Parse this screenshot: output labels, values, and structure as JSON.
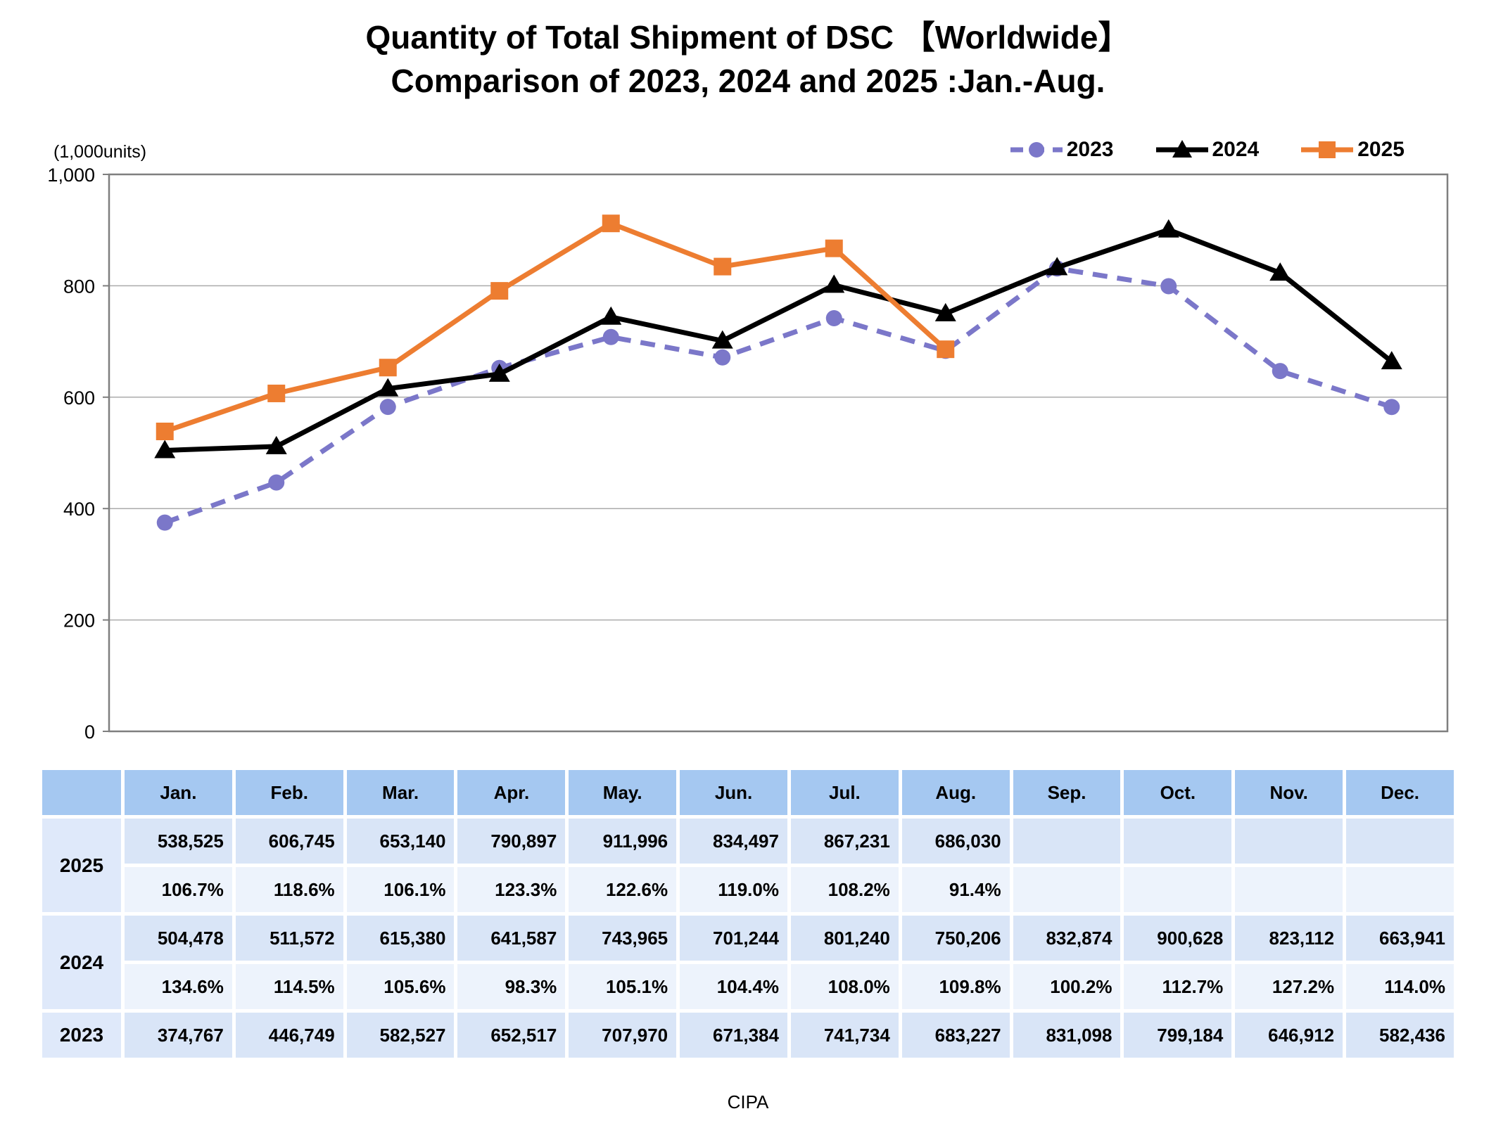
{
  "title": {
    "line1": "Quantity of Total Shipment of DSC 【Worldwide】",
    "line2": "Comparison of 2023, 2024 and 2025 :Jan.-Aug."
  },
  "footer": "CIPA",
  "chart_data": {
    "type": "line",
    "title": "Quantity of Total Shipment of DSC 【Worldwide】 Comparison of 2023, 2024 and 2025 :Jan.-Aug.",
    "xlabel": "",
    "ylabel": "(1,000units)",
    "ylim": [
      0,
      1000
    ],
    "ytick_values": [
      1000,
      800,
      600,
      400,
      200,
      0
    ],
    "ytick_labels": [
      "1,000",
      "800",
      "600",
      "400",
      "200",
      "0"
    ],
    "grid": true,
    "legend_position": "top-right",
    "categories": [
      "Jan.",
      "Feb.",
      "Mar.",
      "Apr.",
      "May.",
      "Jun.",
      "Jul.",
      "Aug.",
      "Sep.",
      "Oct.",
      "Nov.",
      "Dec."
    ],
    "series": [
      {
        "name": "2023",
        "color": "#7B77C9",
        "marker": "circle",
        "line_style": "dashed",
        "values": [
          374.767,
          446.749,
          582.527,
          652.517,
          707.97,
          671.384,
          741.734,
          683.227,
          831.098,
          799.184,
          646.912,
          582.436
        ]
      },
      {
        "name": "2024",
        "color": "#000000",
        "marker": "triangle",
        "line_style": "solid",
        "values": [
          504.478,
          511.572,
          615.38,
          641.587,
          743.965,
          701.244,
          801.24,
          750.206,
          832.874,
          900.628,
          823.112,
          663.941
        ]
      },
      {
        "name": "2025",
        "color": "#ED7D31",
        "marker": "square",
        "line_style": "solid",
        "values": [
          538.525,
          606.745,
          653.14,
          790.897,
          911.996,
          834.497,
          867.231,
          686.03,
          null,
          null,
          null,
          null
        ]
      }
    ],
    "colors": {
      "grid": "#ABABAB",
      "plot_border": "#7F7F7F",
      "axis_text": "#000000"
    }
  },
  "table": {
    "col_headers": [
      "",
      "Jan.",
      "Feb.",
      "Mar.",
      "Apr.",
      "May.",
      "Jun.",
      "Jul.",
      "Aug.",
      "Sep.",
      "Oct.",
      "Nov.",
      "Dec."
    ],
    "rows": [
      {
        "label": "2025",
        "values": [
          "538,525",
          "606,745",
          "653,140",
          "790,897",
          "911,996",
          "834,497",
          "867,231",
          "686,030",
          "",
          "",
          "",
          ""
        ],
        "percentages": [
          "106.7%",
          "118.6%",
          "106.1%",
          "123.3%",
          "122.6%",
          "119.0%",
          "108.2%",
          "91.4%",
          "",
          "",
          "",
          ""
        ]
      },
      {
        "label": "2024",
        "values": [
          "504,478",
          "511,572",
          "615,380",
          "641,587",
          "743,965",
          "701,244",
          "801,240",
          "750,206",
          "832,874",
          "900,628",
          "823,112",
          "663,941"
        ],
        "percentages": [
          "134.6%",
          "114.5%",
          "105.6%",
          "98.3%",
          "105.1%",
          "104.4%",
          "108.0%",
          "109.8%",
          "100.2%",
          "112.7%",
          "127.2%",
          "114.0%"
        ]
      },
      {
        "label": "2023",
        "values": [
          "374,767",
          "446,749",
          "582,527",
          "652,517",
          "707,970",
          "671,384",
          "741,734",
          "683,227",
          "831,098",
          "799,184",
          "646,912",
          "582,436"
        ],
        "percentages": null
      }
    ]
  }
}
